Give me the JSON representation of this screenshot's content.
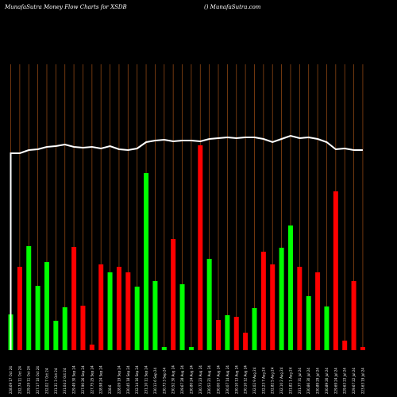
{
  "header": {
    "left": "MunafaSutra  Money Flow  Charts for XSDB",
    "right": "() MunafaSutra.com"
  },
  "chart_data": {
    "type": "bar",
    "title": "MunafaSutra  Money Flow  Charts for XSDB",
    "categories": [
      "228.69 17 Oct 24",
      "232.74 11 Oct 24",
      "229.29 11 Oct 24",
      "227.17 10 Oct 24",
      "232.02 7 Oct 24",
      "231.31 3 Oct 24",
      "231.04 2 Oct 24",
      "229.49 30 Sep 24",
      "227.90 26 Sep 24",
      "227.75 25 Sep 24",
      "228.98 24 Sep 24",
      "228.6",
      "228.09 19 Sep 24",
      "230.45 18 Sep 24",
      "232.14 16 Sep 24",
      "231.10 11 Sep 24",
      "230.13 6 Sep 24",
      "230.73 3 Sep 24",
      "230.52 30 Aug 24",
      "229.67 28 Aug 24",
      "230.80 24 Aug 24",
      "230.73 23 Aug 24",
      "230.53 21 Aug 24",
      "230.00 17 Aug 24",
      "230.07 14 Aug 24",
      "230.10 13 Aug 24",
      "230.10 12 Aug 24",
      "232.02 9 Aug 24",
      "232.23 7 Aug 24",
      "232.82 5 Aug 24",
      "232.10 2 Aug 24",
      "231.82 1 Aug 24",
      "231.77 31 Jul 24",
      "230.86 30 Jul 24",
      "230.89 29 Jul 24",
      "230.89 26 Jul 24",
      "229.69 24 Jul 24",
      "229.63 23 Jul 24",
      "229.67 22 Jul 24",
      "223.63 19 Jul 24"
    ],
    "bars": [
      {
        "value": 45,
        "flow": "in"
      },
      {
        "value": 105,
        "flow": "out"
      },
      {
        "value": 131,
        "flow": "in"
      },
      {
        "value": 81,
        "flow": "in"
      },
      {
        "value": 111,
        "flow": "in"
      },
      {
        "value": 37,
        "flow": "in"
      },
      {
        "value": 54,
        "flow": "in"
      },
      {
        "value": 130,
        "flow": "out"
      },
      {
        "value": 56,
        "flow": "out"
      },
      {
        "value": 7,
        "flow": "out"
      },
      {
        "value": 108,
        "flow": "out"
      },
      {
        "value": 98,
        "flow": "in"
      },
      {
        "value": 105,
        "flow": "out"
      },
      {
        "value": 98,
        "flow": "out"
      },
      {
        "value": 80,
        "flow": "in"
      },
      {
        "value": 223,
        "flow": "in"
      },
      {
        "value": 87,
        "flow": "in"
      },
      {
        "value": 4,
        "flow": "in"
      },
      {
        "value": 140,
        "flow": "out"
      },
      {
        "value": 83,
        "flow": "in"
      },
      {
        "value": 4,
        "flow": "in"
      },
      {
        "value": 258,
        "flow": "out"
      },
      {
        "value": 115,
        "flow": "in"
      },
      {
        "value": 38,
        "flow": "out"
      },
      {
        "value": 44,
        "flow": "in"
      },
      {
        "value": 42,
        "flow": "out"
      },
      {
        "value": 22,
        "flow": "out"
      },
      {
        "value": 53,
        "flow": "in"
      },
      {
        "value": 124,
        "flow": "out"
      },
      {
        "value": 108,
        "flow": "out"
      },
      {
        "value": 129,
        "flow": "in"
      },
      {
        "value": 157,
        "flow": "in"
      },
      {
        "value": 105,
        "flow": "out"
      },
      {
        "value": 68,
        "flow": "in"
      },
      {
        "value": 98,
        "flow": "out"
      },
      {
        "value": 55,
        "flow": "in"
      },
      {
        "value": 200,
        "flow": "out"
      },
      {
        "value": 12,
        "flow": "out"
      },
      {
        "value": 87,
        "flow": "out"
      },
      {
        "value": 4,
        "flow": "out"
      }
    ],
    "price_line": [
      248,
      248,
      252,
      253,
      256,
      257,
      259,
      256,
      255,
      256,
      254,
      257,
      253,
      252,
      254,
      262,
      264,
      265,
      263,
      264,
      264,
      263,
      266,
      267,
      268,
      267,
      268,
      268,
      266,
      262,
      266,
      270,
      267,
      268,
      266,
      262,
      253,
      254,
      252,
      252
    ],
    "ylim": [
      0,
      360
    ],
    "grid": "vertical",
    "colors": {
      "background": "#000000",
      "inflow": "#00ff00",
      "outflow": "#ff0000",
      "grid": "#8b4513",
      "line": "#ffffff",
      "text": "#ffffff"
    }
  }
}
